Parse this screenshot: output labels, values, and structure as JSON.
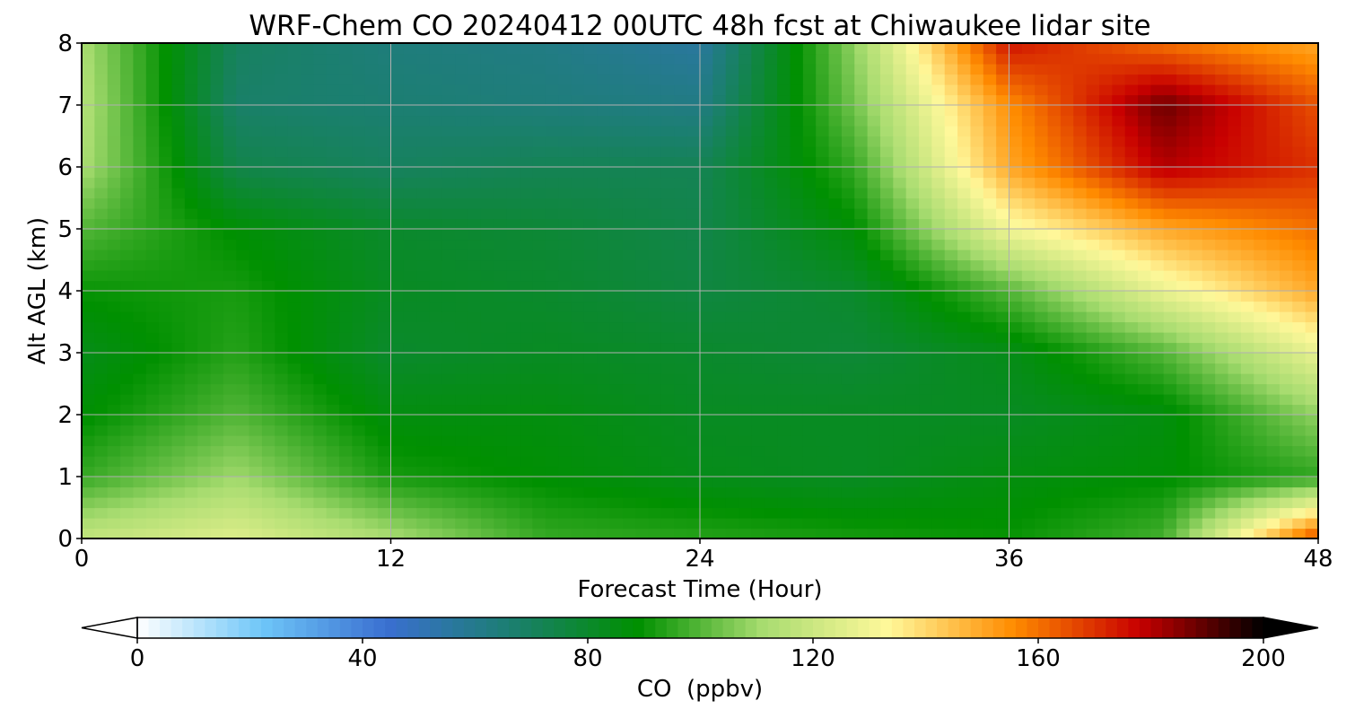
{
  "chart_data": {
    "type": "heatmap",
    "title": "WRF-Chem CO  20240412 00UTC 48h fcst at Chiwaukee lidar site",
    "xlabel": "Forecast Time (Hour)",
    "ylabel": "Alt AGL (km)",
    "xlim": [
      0,
      48
    ],
    "ylim": [
      0,
      8
    ],
    "x_ticks": [
      0,
      12,
      24,
      36,
      48
    ],
    "y_ticks": [
      0,
      1,
      2,
      3,
      4,
      5,
      6,
      7,
      8
    ],
    "grid": true,
    "x": [
      0,
      6,
      12,
      18,
      24,
      30,
      36,
      42,
      48
    ],
    "y": [
      0,
      1,
      2,
      3,
      4,
      5,
      6,
      7,
      8
    ],
    "z_ppbv": [
      [
        118,
        125,
        112,
        96,
        94,
        92,
        90,
        98,
        168
      ],
      [
        96,
        110,
        92,
        88,
        84,
        82,
        86,
        88,
        95
      ],
      [
        88,
        100,
        86,
        86,
        82,
        82,
        82,
        86,
        108
      ],
      [
        84,
        94,
        80,
        82,
        80,
        78,
        84,
        100,
        128
      ],
      [
        90,
        92,
        82,
        80,
        76,
        80,
        100,
        128,
        150
      ],
      [
        100,
        88,
        80,
        78,
        74,
        88,
        130,
        150,
        160
      ],
      [
        112,
        74,
        70,
        72,
        72,
        96,
        150,
        180,
        170
      ],
      [
        114,
        68,
        66,
        64,
        62,
        104,
        155,
        188,
        165
      ],
      [
        112,
        70,
        64,
        62,
        56,
        108,
        175,
        160,
        150
      ]
    ],
    "colorbar": {
      "label": "CO  (ppbv)",
      "min": 0,
      "max": 200,
      "ticks": [
        0,
        40,
        80,
        120,
        160,
        200
      ],
      "extend": "both",
      "orientation": "horizontal",
      "colors": [
        "#ffffff",
        "#6ec6f8",
        "#3a6fd0",
        "#1b7f6f",
        "#009000",
        "#a8dc70",
        "#fff89a",
        "#ff8c00",
        "#c80000",
        "#000000"
      ]
    }
  }
}
